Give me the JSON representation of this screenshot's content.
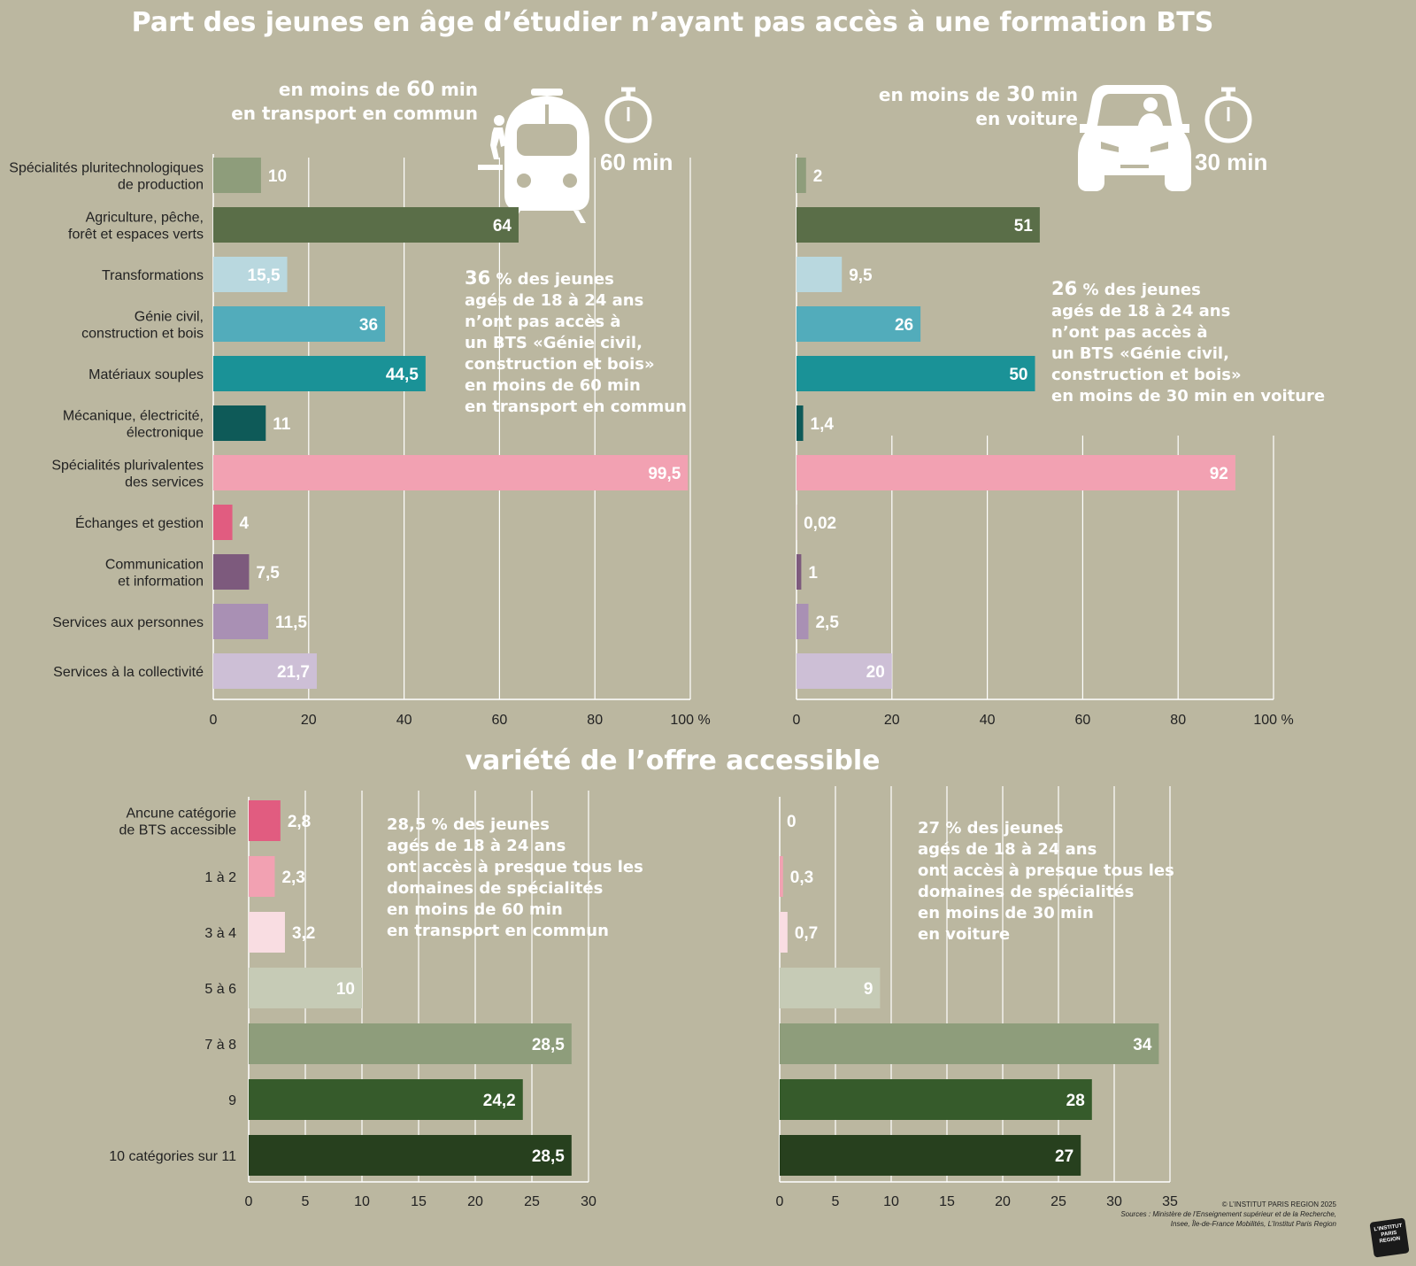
{
  "title": "Part des jeunes en âge d’étudier n’ayant pas accès à une formation BTS",
  "subtitle": "variété de l’offre accessible",
  "panel_left": {
    "head_line1_pre": "en moins de ",
    "head_line1_num": "60",
    "head_line1_post": " min",
    "head_line2": "en transport en commun",
    "minutes_badge": "60 min",
    "annotation_big": "36",
    "annotation_rest": " % des jeunes\nagés de 18 à 24 ans\nn’ont pas accès à\nun BTS «Génie civil,\nconstruction et bois»\nen moins de 60 min\nen transport en commun"
  },
  "panel_right": {
    "head_line1_pre": "en moins de ",
    "head_line1_num": "30",
    "head_line1_post": " min",
    "head_line2": "en voiture",
    "minutes_badge": "30 min",
    "annotation_big": "26",
    "annotation_rest": " % des jeunes\nagés de 18 à 24 ans\nn’ont pas accès à\nun BTS «Génie civil,\nconstruction et bois»\nen moins de 30 min en voiture"
  },
  "bottom_left_annotation": "28,5 % des jeunes\nagés de 18 à 24 ans\nont accès à presque tous les\ndomaines de spécialités\nen moins de 60 min\nen transport en commun",
  "bottom_right_annotation": "27 % des jeunes\nagés de 18 à 24 ans\nont accès à presque tous les\ndomaines de spécialités\nen moins de 30 min\nen voiture",
  "footer": {
    "credit": "© L’INSTITUT PARIS REGION 2025",
    "sources_line1": "Sources : Ministère de l’Enseignement supérieur et de la Recherche,",
    "sources_line2": "Insee, Île-de-France Mobilités, L’Institut Paris Region",
    "logo_line1": "L’INSTITUT",
    "logo_line2": "PARIS",
    "logo_line3": "REGION"
  },
  "chart_data": [
    {
      "type": "bar",
      "orientation": "horizontal",
      "categories": [
        "Spécialités pluritechnologiques\nde production",
        "Agriculture, pêche,\nforêt et espaces verts",
        "Transformations",
        "Génie civil,\nconstruction et bois",
        "Matériaux souples",
        "Mécanique, électricité,\nélectronique",
        "Spécialités plurivalentes\ndes services",
        "Échanges et gestion",
        "Communication\net information",
        "Services aux personnes",
        "Services à la collectivité"
      ],
      "values": [
        10,
        64,
        15.5,
        36,
        44.5,
        11,
        99.5,
        4,
        7.5,
        11.5,
        21.7
      ],
      "value_labels": [
        "10",
        "64",
        "15,5",
        "36",
        "44,5",
        "11",
        "99,5",
        "4",
        "7,5",
        "11,5",
        "21,7"
      ],
      "colors": [
        "#8e9d7b",
        "#5a6e48",
        "#b9d8df",
        "#52acbb",
        "#1a9297",
        "#0e5a58",
        "#f2a1b2",
        "#e15c80",
        "#7d5a7d",
        "#a990b4",
        "#cdbfd6"
      ],
      "xlim": [
        0,
        100
      ],
      "ticks": [
        0,
        20,
        40,
        60,
        80,
        100
      ],
      "tick_labels": [
        "0",
        "20",
        "40",
        "60",
        "80",
        "100 %"
      ],
      "grid": true
    },
    {
      "type": "bar",
      "orientation": "horizontal",
      "categories": [
        "Spécialités pluritechnologiques\nde production",
        "Agriculture, pêche,\nforêt et espaces verts",
        "Transformations",
        "Génie civil,\nconstruction et bois",
        "Matériaux souples",
        "Mécanique, électricité,\nélectronique",
        "Spécialités plurivalentes\ndes services",
        "Échanges et gestion",
        "Communication\net information",
        "Services aux personnes",
        "Services à la collectivité"
      ],
      "values": [
        2,
        51,
        9.5,
        26,
        50,
        1.4,
        92,
        0.02,
        1,
        2.5,
        20
      ],
      "value_labels": [
        "2",
        "51",
        "9,5",
        "26",
        "50",
        "1,4",
        "92",
        "0,02",
        "1",
        "2,5",
        "20"
      ],
      "colors": [
        "#8e9d7b",
        "#5a6e48",
        "#b9d8df",
        "#52acbb",
        "#1a9297",
        "#0e5a58",
        "#f2a1b2",
        "#e15c80",
        "#7d5a7d",
        "#a990b4",
        "#cdbfd6"
      ],
      "xlim": [
        0,
        100
      ],
      "ticks": [
        0,
        20,
        40,
        60,
        80,
        100
      ],
      "tick_labels": [
        "0",
        "20",
        "40",
        "60",
        "80",
        "100 %"
      ],
      "grid": true
    },
    {
      "type": "bar",
      "orientation": "horizontal",
      "categories": [
        "Ancune catégorie\nde BTS accessible",
        "1 à 2",
        "3 à 4",
        "5 à 6",
        "7 à 8",
        "9",
        "10 catégories sur 11"
      ],
      "values": [
        2.8,
        2.3,
        3.2,
        10,
        28.5,
        24.2,
        28.5
      ],
      "value_labels": [
        "2,8",
        "2,3",
        "3,2",
        "10",
        "28,5",
        "24,2",
        "28,5"
      ],
      "colors": [
        "#e15c80",
        "#f2a1b2",
        "#f9dde2",
        "#c6cbb6",
        "#8e9d7b",
        "#365b2b",
        "#27401e"
      ],
      "xlim": [
        0,
        30
      ],
      "ticks": [
        0,
        5,
        10,
        15,
        20,
        25,
        30
      ],
      "tick_labels": [
        "0",
        "5",
        "10",
        "15",
        "20",
        "25",
        "30"
      ],
      "grid": true
    },
    {
      "type": "bar",
      "orientation": "horizontal",
      "categories": [
        "Ancune catégorie\nde BTS accessible",
        "1 à 2",
        "3 à 4",
        "5 à 6",
        "7 à 8",
        "9",
        "10 catégories sur 11"
      ],
      "values": [
        0,
        0.3,
        0.7,
        9,
        34,
        28,
        27
      ],
      "value_labels": [
        "0",
        "0,3",
        "0,7",
        "9",
        "34",
        "28",
        "27"
      ],
      "colors": [
        "#e15c80",
        "#f2a1b2",
        "#f9dde2",
        "#c6cbb6",
        "#8e9d7b",
        "#365b2b",
        "#27401e"
      ],
      "xlim": [
        0,
        35
      ],
      "ticks": [
        0,
        5,
        10,
        15,
        20,
        25,
        30,
        35
      ],
      "tick_labels": [
        "0",
        "5",
        "10",
        "15",
        "20",
        "25",
        "30",
        "35"
      ],
      "grid": true
    }
  ]
}
